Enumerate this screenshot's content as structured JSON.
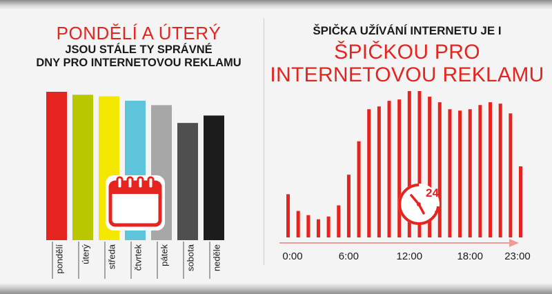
{
  "left_title": {
    "highlight": "PONDĚLÍ A ÚTERÝ",
    "line2": "JSOU STÁLE TY SPRÁVNÉ",
    "line3": "DNY PRO INTERNETOVOU REKLAMU"
  },
  "right_title": {
    "line1": "ŠPIČKA UŽÍVÁNÍ INTERNETU JE I",
    "highlight1": "ŠPIČKOU PRO",
    "highlight2": "INTERNETOVOU REKLAMU"
  },
  "colors": {
    "accent": "#e52420",
    "text": "#1a1a1a"
  },
  "icons": {
    "calendar": "calendar-icon",
    "clock": "clock-24-icon"
  },
  "chart_data": [
    {
      "type": "bar",
      "title": "",
      "categories": [
        "pondělí",
        "úterý",
        "středa",
        "čtvrtek",
        "pátek",
        "sobota",
        "neděle"
      ],
      "values": [
        100,
        98,
        97,
        94,
        91,
        79,
        84
      ],
      "colors": [
        "#e52420",
        "#b8c700",
        "#f5e800",
        "#5ec4dc",
        "#a7a7a7",
        "#4f4f4f",
        "#1c1c1c"
      ],
      "ylim": [
        0,
        100
      ],
      "grid": false,
      "legend": false
    },
    {
      "type": "bar",
      "title": "",
      "x_ticks": [
        "0:00",
        "6:00",
        "12:00",
        "18:00",
        "23:00"
      ],
      "x": [
        0,
        1,
        2,
        3,
        4,
        5,
        6,
        7,
        8,
        9,
        10,
        11,
        12,
        13,
        14,
        15,
        16,
        17,
        18,
        19,
        20,
        21,
        22,
        23
      ],
      "values": [
        31,
        19,
        16,
        13,
        15,
        23,
        45,
        69,
        92,
        94,
        98,
        99,
        105,
        105,
        101,
        97,
        92,
        91,
        92,
        95,
        97,
        96,
        89,
        51
      ],
      "color": "#e52420",
      "ylim": [
        0,
        105
      ],
      "grid": false,
      "legend": false
    }
  ]
}
